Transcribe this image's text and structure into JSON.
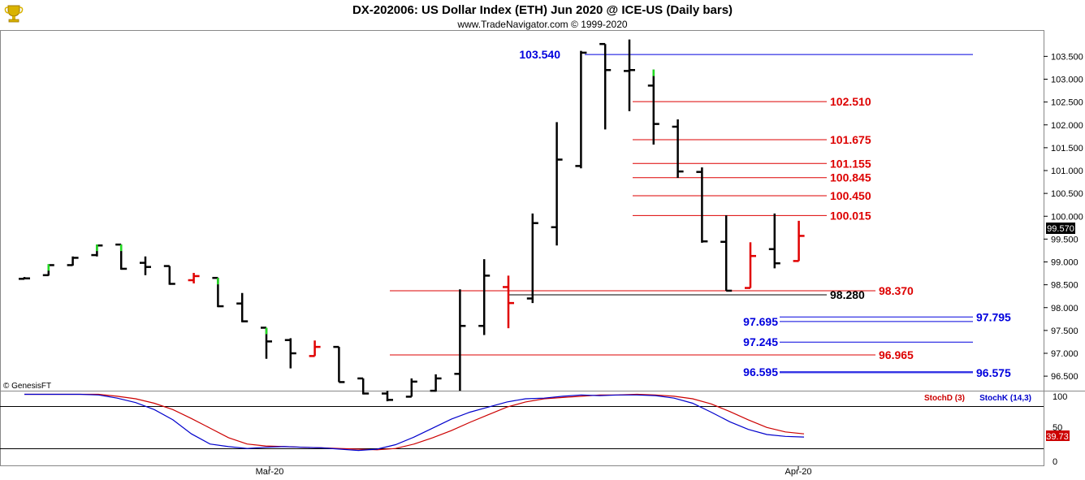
{
  "header": {
    "title": "DX-202006:  US Dollar Index (ETH) Jun 2020 @ ICE-US  (Daily bars)",
    "subtitle": "www.TradeNavigator.com © 1999-2020",
    "logo_icon": "trophy-icon"
  },
  "copyright": "© GenesisFT",
  "price_label": "99.570",
  "indicator": {
    "stoch_d_label": "StochD (3)",
    "stoch_k_label": "StochK (14,3)",
    "value_label": "39.73",
    "ticks": [
      "100",
      "50",
      "0"
    ],
    "colors": {
      "stoch_d": "#cc0000",
      "stoch_k": "#0000cc"
    }
  },
  "colors": {
    "up": "#000000",
    "down": "#e00000",
    "new_high": "#22dd22",
    "blue": "#0000dd",
    "red": "#dd0000"
  },
  "chart_data": [
    {
      "type": "bar",
      "title": "DX-202006:  US Dollar Index (ETH) Jun 2020 @ ICE-US  (Daily bars)",
      "x_tick_labels": [
        "Mar-20",
        "Apr-20"
      ],
      "y_tick_labels": [
        "103.500",
        "103.000",
        "102.500",
        "102.000",
        "101.500",
        "101.000",
        "100.500",
        "100.000",
        "99.500",
        "99.000",
        "98.500",
        "98.000",
        "97.500",
        "97.000",
        "96.500"
      ],
      "ylim": [
        96.2,
        103.9
      ],
      "grid": false,
      "ohlc": [
        {
          "o": 98.63,
          "h": 98.67,
          "l": 98.62,
          "c": 98.64,
          "color": "black"
        },
        {
          "o": 98.71,
          "h": 98.95,
          "l": 98.7,
          "c": 98.93,
          "color": "black",
          "mark": "green"
        },
        {
          "o": 98.93,
          "h": 99.12,
          "l": 98.92,
          "c": 99.09,
          "color": "black"
        },
        {
          "o": 99.15,
          "h": 99.38,
          "l": 99.12,
          "c": 99.36,
          "color": "black",
          "mark": "green"
        },
        {
          "o": 99.38,
          "h": 99.38,
          "l": 98.83,
          "c": 98.85,
          "color": "black",
          "mark": "green"
        },
        {
          "o": 98.98,
          "h": 99.12,
          "l": 98.71,
          "c": 98.89,
          "color": "black"
        },
        {
          "o": 98.91,
          "h": 98.91,
          "l": 98.5,
          "c": 98.52,
          "color": "black"
        },
        {
          "o": 98.6,
          "h": 98.76,
          "l": 98.53,
          "c": 98.69,
          "color": "red"
        },
        {
          "o": 98.65,
          "h": 98.65,
          "l": 98.01,
          "c": 98.03,
          "color": "black",
          "mark": "green"
        },
        {
          "o": 98.09,
          "h": 98.32,
          "l": 97.68,
          "c": 97.7,
          "color": "black"
        },
        {
          "o": 97.56,
          "h": 97.56,
          "l": 96.88,
          "c": 97.26,
          "color": "black",
          "mark": "green"
        },
        {
          "o": 97.29,
          "h": 97.33,
          "l": 96.67,
          "c": 97.0,
          "color": "black"
        },
        {
          "o": 96.94,
          "h": 97.28,
          "l": 96.94,
          "c": 97.14,
          "color": "red"
        },
        {
          "o": 97.14,
          "h": 97.14,
          "l": 96.37,
          "c": 96.37,
          "color": "black"
        },
        {
          "o": 96.45,
          "h": 96.45,
          "l": 96.1,
          "c": 96.12,
          "color": "black"
        },
        {
          "o": 96.12,
          "h": 96.18,
          "l": 95.95,
          "c": 95.98,
          "color": "black"
        },
        {
          "o": 96.05,
          "h": 96.45,
          "l": 96.05,
          "c": 96.38,
          "color": "black"
        },
        {
          "o": 96.18,
          "h": 96.54,
          "l": 96.16,
          "c": 96.45,
          "color": "black"
        },
        {
          "o": 96.55,
          "h": 98.4,
          "l": 96.18,
          "c": 97.6,
          "color": "black"
        },
        {
          "o": 97.6,
          "h": 99.06,
          "l": 97.4,
          "c": 98.7,
          "color": "black"
        },
        {
          "o": 98.45,
          "h": 98.7,
          "l": 97.55,
          "c": 98.1,
          "color": "red"
        },
        {
          "o": 98.2,
          "h": 100.06,
          "l": 98.1,
          "c": 99.85,
          "color": "black"
        },
        {
          "o": 99.76,
          "h": 102.06,
          "l": 99.36,
          "c": 101.24,
          "color": "black"
        },
        {
          "o": 101.1,
          "h": 103.62,
          "l": 101.05,
          "c": 103.58,
          "color": "black"
        },
        {
          "o": 103.77,
          "h": 103.77,
          "l": 101.9,
          "c": 103.2,
          "color": "black"
        },
        {
          "o": 103.18,
          "h": 103.87,
          "l": 102.3,
          "c": 103.2,
          "color": "black"
        },
        {
          "o": 102.86,
          "h": 103.21,
          "l": 101.57,
          "c": 102.02,
          "color": "black",
          "mark": "green"
        },
        {
          "o": 101.96,
          "h": 102.12,
          "l": 100.84,
          "c": 100.98,
          "color": "black"
        },
        {
          "o": 100.97,
          "h": 101.07,
          "l": 99.42,
          "c": 99.45,
          "color": "black"
        },
        {
          "o": 99.44,
          "h": 100.02,
          "l": 98.37,
          "c": 98.37,
          "color": "black"
        },
        {
          "o": 98.43,
          "h": 99.43,
          "l": 98.43,
          "c": 99.13,
          "color": "red"
        },
        {
          "o": 99.28,
          "h": 100.06,
          "l": 98.86,
          "c": 98.97,
          "color": "black"
        },
        {
          "o": 99.02,
          "h": 99.9,
          "l": 99.02,
          "c": 99.57,
          "color": "red"
        }
      ],
      "levels": [
        {
          "value": 103.54,
          "label": "103.540",
          "color": "blue",
          "label_side": "left"
        },
        {
          "value": 102.51,
          "label": "102.510",
          "color": "red"
        },
        {
          "value": 101.675,
          "label": "101.675",
          "color": "red"
        },
        {
          "value": 101.155,
          "label": "101.155",
          "color": "red"
        },
        {
          "value": 100.845,
          "label": "100.845",
          "color": "red"
        },
        {
          "value": 100.45,
          "label": "100.450",
          "color": "red"
        },
        {
          "value": 100.015,
          "label": "100.015",
          "color": "red"
        },
        {
          "value": 98.37,
          "label": "98.370",
          "color": "red"
        },
        {
          "value": 98.28,
          "label": "98.280",
          "color": "black"
        },
        {
          "value": 97.795,
          "label": "97.795",
          "color": "blue"
        },
        {
          "value": 97.695,
          "label": "97.695",
          "color": "blue",
          "label_side": "left"
        },
        {
          "value": 97.245,
          "label": "97.245",
          "color": "blue",
          "label_side": "left"
        },
        {
          "value": 96.965,
          "label": "96.965",
          "color": "red"
        },
        {
          "value": 96.595,
          "label": "96.595",
          "color": "blue",
          "label_side": "left"
        },
        {
          "value": 96.575,
          "label": "96.575",
          "color": "blue"
        }
      ],
      "current_price": 99.57
    },
    {
      "type": "line",
      "series": [
        {
          "name": "StochD (3)",
          "values": [
            100,
            100,
            100,
            100,
            100,
            97,
            93,
            86,
            76,
            62,
            47,
            32,
            22,
            19,
            18,
            17,
            16,
            15,
            14,
            13,
            15,
            22,
            32,
            43,
            56,
            68,
            80,
            88,
            93,
            95,
            97,
            99,
            99,
            100,
            99,
            97,
            93,
            85,
            73,
            60,
            48,
            41,
            38
          ]
        },
        {
          "name": "StochK (14,3)",
          "values": [
            100,
            100,
            100,
            100,
            99,
            94,
            87,
            76,
            60,
            38,
            22,
            18,
            15,
            17,
            18,
            17,
            16,
            14,
            12,
            14,
            21,
            33,
            47,
            61,
            72,
            80,
            88,
            93,
            94,
            97,
            99,
            98,
            99,
            99,
            98,
            94,
            86,
            72,
            57,
            45,
            37,
            34,
            33
          ]
        }
      ],
      "ylim": [
        0,
        100
      ]
    }
  ]
}
